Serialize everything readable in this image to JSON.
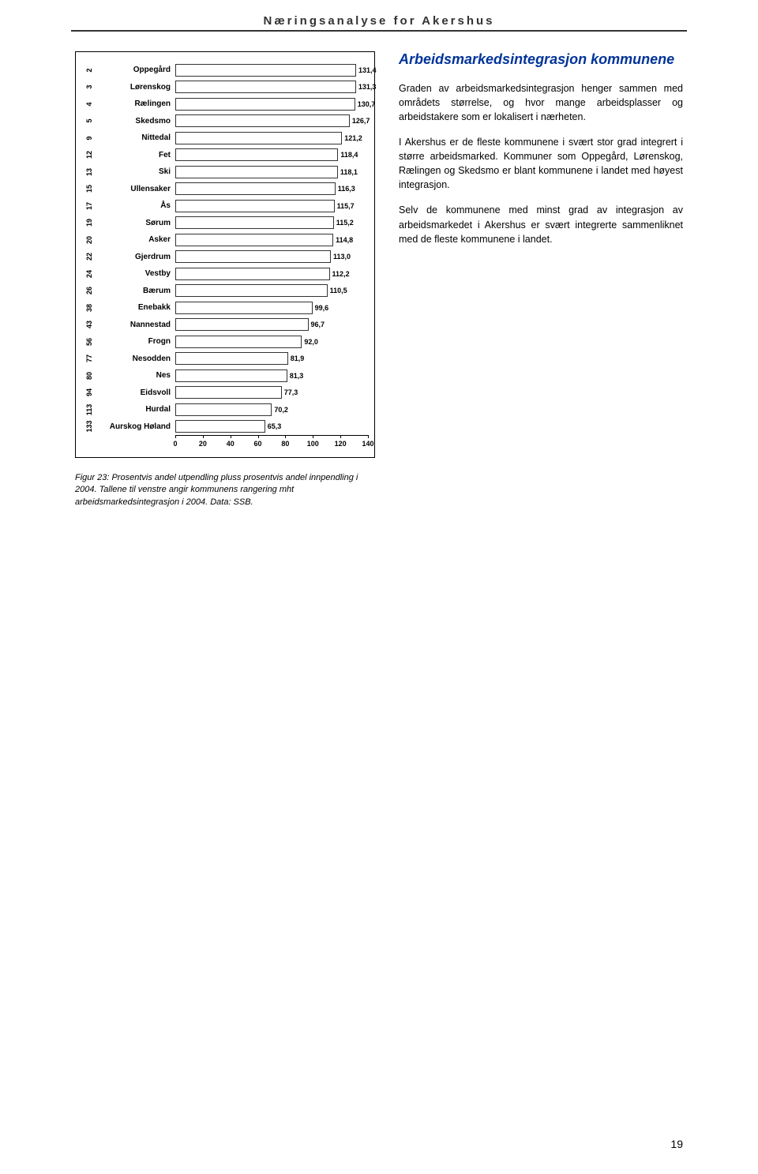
{
  "header": {
    "title": "Næringsanalyse for Akershus"
  },
  "chart": {
    "type": "bar",
    "xlim": [
      0,
      140
    ],
    "xtick_step": 20,
    "xticks": [
      0,
      20,
      40,
      60,
      80,
      100,
      120,
      140
    ],
    "bar_fill": "#ffffff",
    "bar_border": "#333333",
    "label_fontsize": 10,
    "value_fontsize": 9,
    "rows": [
      {
        "rank": "2",
        "name": "Oppegård",
        "value": 131.4,
        "label": "131,4"
      },
      {
        "rank": "3",
        "name": "Lørenskog",
        "value": 131.3,
        "label": "131,3"
      },
      {
        "rank": "4",
        "name": "Rælingen",
        "value": 130.7,
        "label": "130,7"
      },
      {
        "rank": "5",
        "name": "Skedsmo",
        "value": 126.7,
        "label": "126,7"
      },
      {
        "rank": "9",
        "name": "Nittedal",
        "value": 121.2,
        "label": "121,2"
      },
      {
        "rank": "12",
        "name": "Fet",
        "value": 118.4,
        "label": "118,4"
      },
      {
        "rank": "13",
        "name": "Ski",
        "value": 118.1,
        "label": "118,1"
      },
      {
        "rank": "15",
        "name": "Ullensaker",
        "value": 116.3,
        "label": "116,3"
      },
      {
        "rank": "17",
        "name": "Ås",
        "value": 115.7,
        "label": "115,7"
      },
      {
        "rank": "19",
        "name": "Sørum",
        "value": 115.2,
        "label": "115,2"
      },
      {
        "rank": "20",
        "name": "Asker",
        "value": 114.8,
        "label": "114,8"
      },
      {
        "rank": "22",
        "name": "Gjerdrum",
        "value": 113.0,
        "label": "113,0"
      },
      {
        "rank": "24",
        "name": "Vestby",
        "value": 112.2,
        "label": "112,2"
      },
      {
        "rank": "26",
        "name": "Bærum",
        "value": 110.5,
        "label": "110,5"
      },
      {
        "rank": "38",
        "name": "Enebakk",
        "value": 99.6,
        "label": "99,6"
      },
      {
        "rank": "43",
        "name": "Nannestad",
        "value": 96.7,
        "label": "96,7"
      },
      {
        "rank": "56",
        "name": "Frogn",
        "value": 92.0,
        "label": "92,0"
      },
      {
        "rank": "77",
        "name": "Nesodden",
        "value": 81.9,
        "label": "81,9"
      },
      {
        "rank": "80",
        "name": "Nes",
        "value": 81.3,
        "label": "81,3"
      },
      {
        "rank": "94",
        "name": "Eidsvoll",
        "value": 77.3,
        "label": "77,3"
      },
      {
        "rank": "113",
        "name": "Hurdal",
        "value": 70.2,
        "label": "70,2"
      },
      {
        "rank": "133",
        "name": "Aurskog Høland",
        "value": 65.3,
        "label": "65,3"
      }
    ]
  },
  "caption": "Figur 23: Prosentvis andel utpendling pluss prosentvis andel innpendling i 2004. Tallene til venstre angir kommunens rangering mht arbeidsmarkedsintegrasjon i 2004. Data: SSB.",
  "right": {
    "title": "Arbeidsmarkedsintegrasjon kommunene",
    "paras": [
      "Graden av arbeidsmarkedsintegrasjon henger sammen med områdets størrelse, og hvor mange arbeidsplasser og arbeidstakere som er lokalisert i nærheten.",
      "I Akershus er de fleste kommunene i svært stor grad integrert i større arbeidsmarked. Kommuner som Oppegård, Lørenskog, Rælingen og Skedsmo er blant kommunene i landet med høyest integrasjon.",
      "Selv de kommunene med minst grad av integrasjon av arbeidsmarkedet i Akershus er svært integrerte sammenliknet med de fleste kommunene i landet."
    ]
  },
  "page_number": "19",
  "colors": {
    "title": "#003399",
    "text": "#000000",
    "background": "#ffffff"
  }
}
